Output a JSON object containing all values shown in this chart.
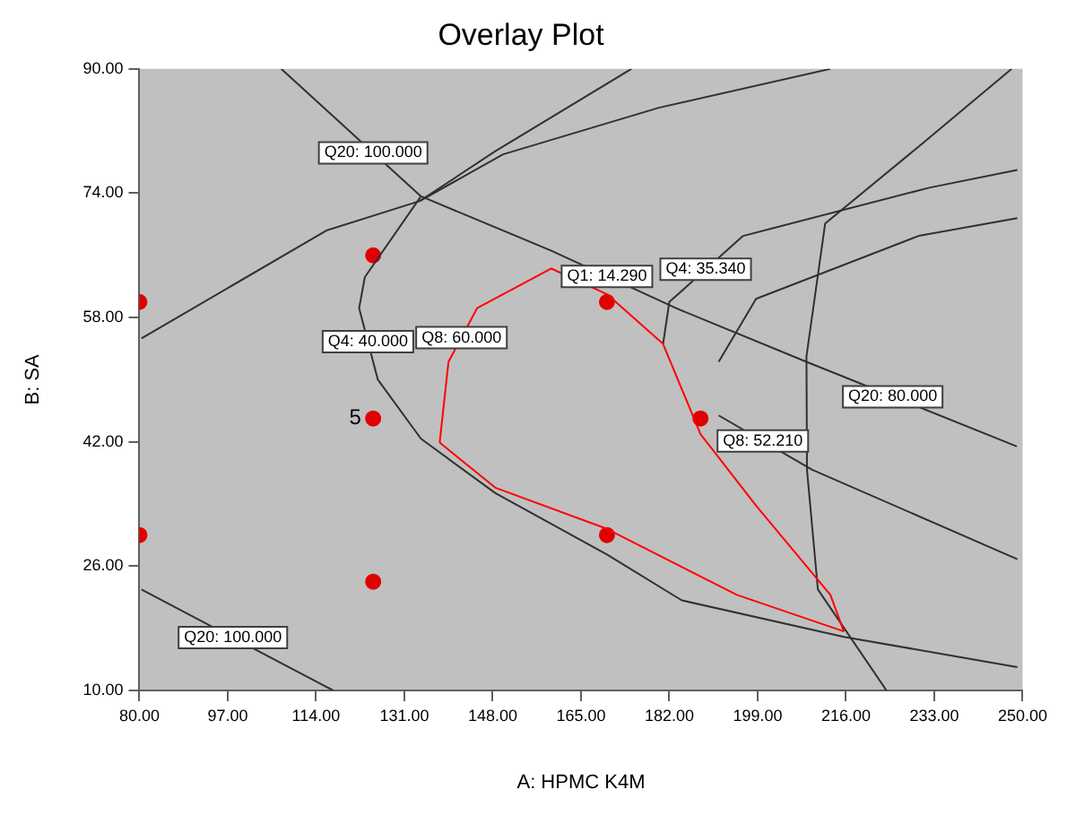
{
  "chart_data": {
    "type": "scatter",
    "title": "Overlay Plot",
    "xlabel": "A: HPMC K4M",
    "ylabel": "B: SA",
    "xlim": [
      80,
      250
    ],
    "ylim": [
      10,
      90
    ],
    "xticks": [
      {
        "value": 80,
        "label": "80.00"
      },
      {
        "value": 97,
        "label": "97.00"
      },
      {
        "value": 114,
        "label": "114.00"
      },
      {
        "value": 131,
        "label": "131.00"
      },
      {
        "value": 148,
        "label": "148.00"
      },
      {
        "value": 165,
        "label": "165.00"
      },
      {
        "value": 182,
        "label": "182.00"
      },
      {
        "value": 199,
        "label": "199.00"
      },
      {
        "value": 216,
        "label": "216.00"
      },
      {
        "value": 233,
        "label": "233.00"
      },
      {
        "value": 250,
        "label": "250.00"
      }
    ],
    "yticks": [
      {
        "value": 10,
        "label": "10.00"
      },
      {
        "value": 26,
        "label": "26.00"
      },
      {
        "value": 42,
        "label": "42.00"
      },
      {
        "value": 58,
        "label": "58.00"
      },
      {
        "value": 74,
        "label": "74.00"
      },
      {
        "value": 90,
        "label": "90.00"
      }
    ],
    "grid": false,
    "legend": false,
    "series": [
      {
        "type": "line",
        "color": "#ff0000",
        "x": [
          137.8,
          139.5,
          145,
          159.3,
          170,
          180.8,
          188,
          198.7,
          213,
          215.6
        ],
        "values": [
          41.9,
          52.3,
          59.2,
          64.3,
          61,
          54.6,
          43,
          33.8,
          22.3,
          17.6
        ]
      },
      {
        "type": "line",
        "color": "#ff0000",
        "x": [
          137.8,
          148.5,
          170,
          195,
          215.6
        ],
        "values": [
          41.9,
          36.1,
          30.8,
          22.3,
          17.6
        ]
      },
      {
        "type": "line",
        "color": "#303030",
        "x": [
          80.4,
          116,
          134,
          148.5,
          174.7
        ],
        "values": [
          55.3,
          69.2,
          73,
          79.4,
          90
        ]
      },
      {
        "type": "line",
        "color": "#303030",
        "x": [
          134,
          150,
          180,
          213
        ],
        "values": [
          73,
          79,
          85,
          90
        ]
      },
      {
        "type": "line",
        "color": "#303030",
        "x": [
          107.3,
          134.2,
          159.3,
          183.3,
          208.4,
          248.9
        ],
        "values": [
          90,
          73.6,
          66.6,
          59.2,
          52.3,
          41.4
        ]
      },
      {
        "type": "line",
        "color": "#303030",
        "x": [
          134.2,
          123.4,
          122.3,
          125.9,
          134.2,
          148.5,
          170,
          184.4,
          215.6,
          249
        ],
        "values": [
          73.6,
          63.2,
          59.2,
          50,
          42.4,
          35.4,
          27.5,
          21.6,
          16.9,
          13
        ]
      },
      {
        "type": "line",
        "color": "#303030",
        "x": [
          180.8,
          182,
          196.2,
          232,
          249
        ],
        "values": [
          54.6,
          60,
          68.5,
          74.7,
          77
        ]
      },
      {
        "type": "line",
        "color": "#303030",
        "x": [
          191.5,
          198.7,
          230,
          249
        ],
        "values": [
          52.3,
          60.4,
          68.5,
          70.8
        ]
      },
      {
        "type": "line",
        "color": "#303030",
        "x": [
          191.5,
          209.5,
          249
        ],
        "values": [
          45.4,
          38.4,
          26.9
        ]
      },
      {
        "type": "line",
        "color": "#303030",
        "x": [
          247.9,
          230,
          212,
          208.4,
          208.5,
          210.6,
          223.8
        ],
        "values": [
          90,
          80,
          70.1,
          53,
          38.4,
          23,
          10
        ]
      },
      {
        "type": "line",
        "color": "#303030",
        "x": [
          80.4,
          117.3
        ],
        "values": [
          23,
          10
        ]
      },
      {
        "type": "scatter",
        "color": "#e00000",
        "x": [
          80,
          80,
          125,
          125,
          125,
          170,
          188,
          170
        ],
        "values": [
          60,
          30,
          66,
          45,
          24,
          60,
          45,
          30
        ]
      }
    ],
    "annotations": [
      {
        "text": "Q20: 100.000",
        "x": 125,
        "y": 79.2
      },
      {
        "text": "Q1: 14.290",
        "x": 170,
        "y": 63.3
      },
      {
        "text": "Q8: 60.000",
        "x": 142,
        "y": 55.4
      },
      {
        "text": "Q4: 40.000",
        "x": 124,
        "y": 54.9
      },
      {
        "text": "Q4: 35.340",
        "x": 189,
        "y": 64.2
      },
      {
        "text": "Q20: 80.000",
        "x": 225,
        "y": 47.8
      },
      {
        "text": "Q8: 52.210",
        "x": 200,
        "y": 42.1
      },
      {
        "text": "Q20: 100.000",
        "x": 98,
        "y": 16.8
      },
      {
        "text": "5",
        "x": 125,
        "y": 45
      }
    ]
  }
}
